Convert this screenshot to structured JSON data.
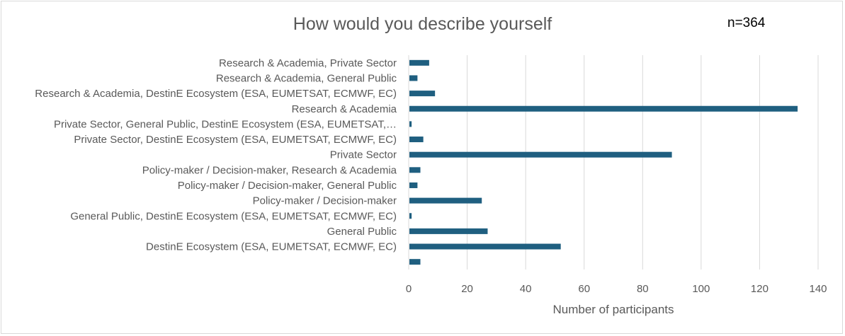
{
  "chart_data": {
    "type": "bar",
    "orientation": "horizontal",
    "title": "How would you describe yourself",
    "annotation": "n=364",
    "xlabel": "Number of participants",
    "ylabel": "",
    "xlim": [
      0,
      140
    ],
    "xticks": [
      0,
      20,
      40,
      60,
      80,
      100,
      120,
      140
    ],
    "grid": true,
    "legend": "none",
    "bar_color": "#1f5f80",
    "categories": [
      "Research & Academia, Private Sector",
      "Research & Academia, General Public",
      "Research & Academia, DestinE Ecosystem (ESA, EUMETSAT, ECMWF, EC)",
      "Research & Academia",
      "Private Sector, General Public, DestinE Ecosystem (ESA, EUMETSAT,…",
      "Private Sector, DestinE Ecosystem (ESA, EUMETSAT, ECMWF, EC)",
      "Private Sector",
      "Policy-maker / Decision-maker, Research & Academia",
      "Policy-maker / Decision-maker, General Public",
      "Policy-maker / Decision-maker",
      "General Public, DestinE Ecosystem (ESA, EUMETSAT, ECMWF, EC)",
      "General Public",
      "DestinE Ecosystem (ESA, EUMETSAT, ECMWF, EC)",
      ""
    ],
    "values": [
      7,
      3,
      9,
      133,
      1,
      5,
      90,
      4,
      3,
      25,
      1,
      27,
      52,
      4
    ]
  }
}
